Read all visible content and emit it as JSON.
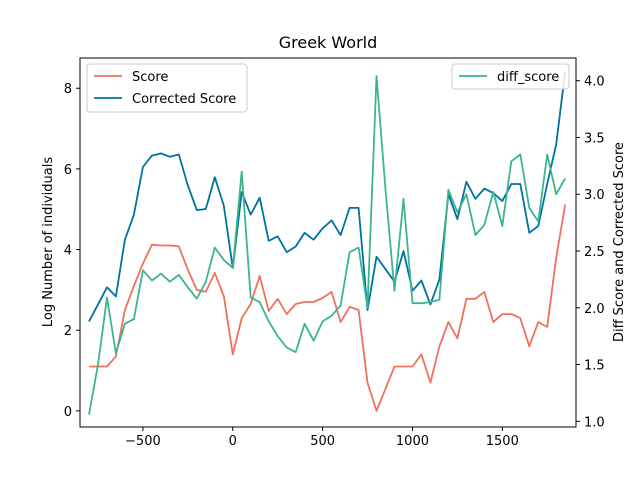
{
  "chart_data": {
    "type": "line",
    "title": "Greek World",
    "xlabel": "",
    "ylabel_left": "Log Number of individuals",
    "ylabel_right": "Diff Score and Corrected Score",
    "xlim": [
      -850,
      1910
    ],
    "ylim_left": [
      -0.4,
      8.75
    ],
    "ylim_right": [
      0.95,
      4.2
    ],
    "x_ticks": [
      -500,
      0,
      500,
      1000,
      1500
    ],
    "x_tick_labels": [
      "−500",
      "0",
      "500",
      "1000",
      "1500"
    ],
    "y_left_ticks": [
      0,
      2,
      4,
      6,
      8
    ],
    "y_right_ticks": [
      1.0,
      1.5,
      2.0,
      2.5,
      3.0,
      3.5,
      4.0
    ],
    "y_right_tick_labels": [
      "1.0",
      "1.5",
      "2.0",
      "2.5",
      "3.0",
      "3.5",
      "4.0"
    ],
    "series": [
      {
        "name": "Score",
        "axis": "left",
        "color": "#f07060",
        "x": [
          -800,
          -750,
          -700,
          -650,
          -600,
          -550,
          -500,
          -450,
          -400,
          -350,
          -300,
          -250,
          -200,
          -150,
          -100,
          -50,
          0,
          50,
          100,
          150,
          200,
          250,
          300,
          350,
          400,
          450,
          500,
          550,
          600,
          650,
          700,
          750,
          800,
          850,
          900,
          950,
          1000,
          1050,
          1100,
          1150,
          1200,
          1250,
          1300,
          1350,
          1400,
          1450,
          1500,
          1550,
          1600,
          1650,
          1700,
          1750,
          1800,
          1850
        ],
        "values": [
          1.1,
          1.1,
          1.1,
          1.35,
          2.5,
          3.1,
          3.65,
          4.12,
          4.1,
          4.1,
          4.08,
          3.5,
          3.0,
          2.95,
          3.42,
          2.85,
          1.4,
          2.3,
          2.65,
          3.35,
          2.48,
          2.78,
          2.4,
          2.65,
          2.7,
          2.7,
          2.8,
          2.95,
          2.2,
          2.58,
          2.5,
          0.7,
          0.0,
          0.55,
          1.1,
          1.1,
          1.1,
          1.4,
          0.7,
          1.6,
          2.2,
          1.8,
          2.78,
          2.78,
          2.95,
          2.2,
          2.4,
          2.4,
          2.3,
          1.6,
          2.2,
          2.08,
          3.8,
          5.12
        ]
      },
      {
        "name": "Corrected Score",
        "axis": "right",
        "color": "#0072a0",
        "x": [
          -800,
          -750,
          -700,
          -650,
          -600,
          -550,
          -500,
          -450,
          -400,
          -350,
          -300,
          -250,
          -200,
          -150,
          -100,
          -50,
          0,
          50,
          100,
          150,
          200,
          250,
          300,
          350,
          400,
          450,
          500,
          550,
          600,
          650,
          700,
          750,
          800,
          850,
          900,
          950,
          1000,
          1050,
          1100,
          1150,
          1200,
          1250,
          1300,
          1350,
          1400,
          1450,
          1500,
          1550,
          1600,
          1650,
          1700,
          1750,
          1800,
          1850
        ],
        "values": [
          1.88,
          2.03,
          2.18,
          2.1,
          2.6,
          2.82,
          3.24,
          3.34,
          3.36,
          3.33,
          3.35,
          3.08,
          2.86,
          2.87,
          3.15,
          2.9,
          2.35,
          3.02,
          2.82,
          2.97,
          2.59,
          2.63,
          2.49,
          2.54,
          2.66,
          2.6,
          2.7,
          2.77,
          2.64,
          2.88,
          2.88,
          1.98,
          2.45,
          2.34,
          2.23,
          2.5,
          2.15,
          2.24,
          2.03,
          2.25,
          3.0,
          2.78,
          3.11,
          2.96,
          3.05,
          3.01,
          2.94,
          3.09,
          3.09,
          2.66,
          2.72,
          3.09,
          3.44,
          4.08
        ]
      },
      {
        "name": "diff_score",
        "axis": "right",
        "color": "#3cb48c",
        "x": [
          -800,
          -750,
          -700,
          -650,
          -600,
          -550,
          -500,
          -450,
          -400,
          -350,
          -300,
          -250,
          -200,
          -150,
          -100,
          -50,
          0,
          50,
          100,
          150,
          200,
          250,
          300,
          350,
          400,
          450,
          500,
          550,
          600,
          650,
          700,
          750,
          800,
          850,
          900,
          950,
          1000,
          1050,
          1100,
          1150,
          1200,
          1250,
          1300,
          1350,
          1400,
          1450,
          1500,
          1550,
          1600,
          1650,
          1700,
          1750,
          1800,
          1850
        ],
        "values": [
          1.06,
          1.5,
          2.09,
          1.6,
          1.86,
          1.9,
          2.33,
          2.24,
          2.3,
          2.23,
          2.29,
          2.18,
          2.08,
          2.23,
          2.53,
          2.42,
          2.35,
          3.2,
          2.09,
          2.05,
          1.88,
          1.75,
          1.65,
          1.61,
          1.86,
          1.71,
          1.88,
          1.93,
          2.02,
          2.49,
          2.53,
          2.0,
          4.04,
          3.04,
          2.15,
          2.96,
          2.04,
          2.04,
          2.05,
          2.07,
          3.04,
          2.84,
          3.0,
          2.64,
          2.73,
          3.02,
          2.72,
          3.29,
          3.35,
          2.88,
          2.76,
          3.35,
          3.0,
          3.14
        ]
      }
    ],
    "legend_left": {
      "placement": "top-left",
      "entries": [
        "Score",
        "Corrected Score"
      ]
    },
    "legend_right": {
      "placement": "top-right",
      "entries": [
        "diff_score"
      ]
    },
    "grid": false
  }
}
